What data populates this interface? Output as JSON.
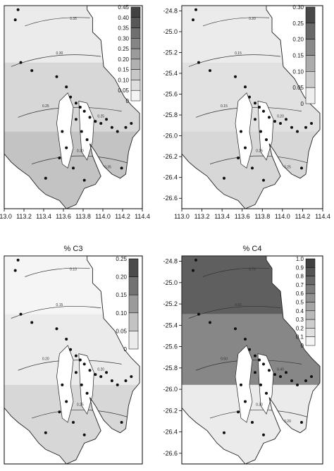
{
  "chart_data": [
    {
      "type": "heatmap",
      "title": "",
      "position": "top-left",
      "x_ticks": [
        "113.0",
        "113.2",
        "113.4",
        "113.6",
        "113.8",
        "114.0",
        "114.2",
        "114.4"
      ],
      "y_ticks": [],
      "xlim": [
        113.0,
        114.4
      ],
      "ylim": [
        -26.7,
        -24.75
      ],
      "colorbar": [
        "0.45",
        "0.40",
        "0.35",
        "0.30",
        "0.25",
        "0.20",
        "0.15",
        "0.10",
        "0.05",
        "0"
      ],
      "contour_labels": [
        "0.35",
        "0.30",
        "0.25",
        "0.25",
        "0.30",
        "0.35"
      ],
      "regions": [
        {
          "level": 0.1,
          "area": "north"
        },
        {
          "level": 0.2,
          "area": "middle"
        },
        {
          "level": 0.3,
          "area": "south"
        }
      ]
    },
    {
      "type": "heatmap",
      "title": "",
      "position": "top-right",
      "x_ticks": [
        "113.0",
        "113.2",
        "113.4",
        "113.6",
        "113.8",
        "114.0",
        "114.2",
        "114.4"
      ],
      "y_ticks": [
        "-24.8",
        "-25.0",
        "-25.2",
        "-25.4",
        "-25.6",
        "-25.8",
        "-26.0",
        "-26.2",
        "-26.4",
        "-26.6"
      ],
      "xlim": [
        113.0,
        114.4
      ],
      "ylim": [
        -26.7,
        -24.75
      ],
      "colorbar": [
        "0.30",
        "0.25",
        "0.20",
        "0.15",
        "0.10",
        "0.05",
        "0"
      ],
      "contour_labels": [
        "0.20",
        "0.15",
        "0.15",
        "0.20",
        "0.25",
        "0.25"
      ],
      "regions": [
        {
          "level": 0.1,
          "area": "north"
        },
        {
          "level": 0.15,
          "area": "middle"
        },
        {
          "level": 0.2,
          "area": "south"
        }
      ]
    },
    {
      "type": "heatmap",
      "title": "% C3",
      "position": "bottom-left",
      "x_ticks": [],
      "y_ticks": [],
      "xlim": [
        113.0,
        114.4
      ],
      "ylim": [
        -26.7,
        -24.75
      ],
      "colorbar": [
        "0.25",
        "0.20",
        "0.15",
        "0.10",
        "0.05",
        "0"
      ],
      "contour_labels": [
        "0.10",
        "0.15",
        "0.20",
        "0.20",
        "0.25"
      ],
      "regions": [
        {
          "level": 0.05,
          "area": "north"
        },
        {
          "level": 0.1,
          "area": "middle"
        },
        {
          "level": 0.2,
          "area": "south"
        }
      ]
    },
    {
      "type": "heatmap",
      "title": "% C4",
      "position": "bottom-right",
      "x_ticks": [],
      "y_ticks": [
        "-24.8",
        "-25.0",
        "-25.2",
        "-25.4",
        "-25.6",
        "-25.8",
        "-26.0",
        "-26.2",
        "-26.4",
        "-26.6"
      ],
      "xlim": [
        113.0,
        114.4
      ],
      "ylim": [
        -26.7,
        -24.75
      ],
      "colorbar": [
        "1.0",
        "0.9",
        "0.8",
        "0.7",
        "0.6",
        "0.5",
        "0.4",
        "0.3",
        "0.2",
        "0.1",
        "0"
      ],
      "contour_labels": [
        "0.70",
        "0.60",
        "0.50",
        "0.40",
        "0.30",
        "0.20"
      ],
      "regions": [
        {
          "level": 0.8,
          "area": "north"
        },
        {
          "level": 0.6,
          "area": "middle"
        },
        {
          "level": 0.1,
          "area": "south"
        }
      ]
    }
  ]
}
